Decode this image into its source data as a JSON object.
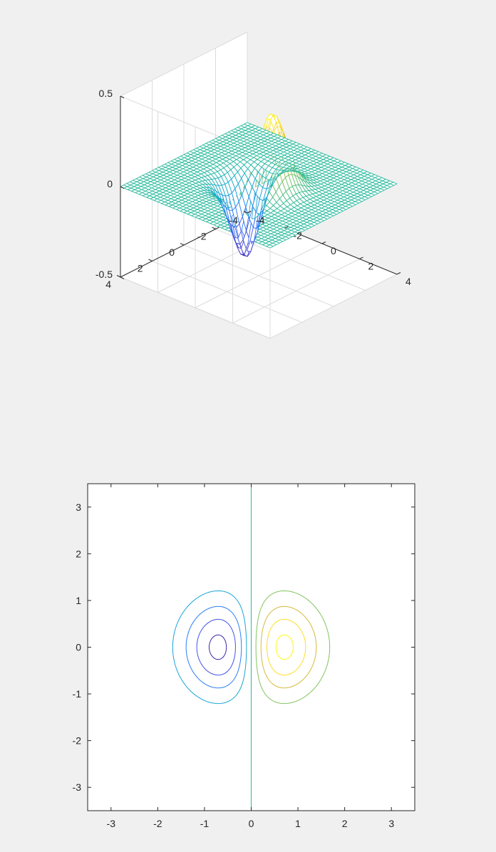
{
  "chart_data": [
    {
      "type": "surface",
      "function": "z = x * exp(-x^2 - y^2)",
      "x": [
        -4,
        -3.8,
        -3.6,
        -3.4,
        -3.2,
        -3,
        -2.8,
        -2.6,
        -2.4,
        -2.2,
        -2,
        -1.8,
        -1.6,
        -1.4,
        -1.2,
        -1,
        -0.8,
        -0.6,
        -0.4,
        -0.2,
        0,
        0.2,
        0.4,
        0.6,
        0.8,
        1,
        1.2,
        1.4,
        1.6,
        1.8,
        2,
        2.2,
        2.4,
        2.6,
        2.8,
        3,
        3.2,
        3.4,
        3.6,
        3.8,
        4
      ],
      "y": [
        -4,
        -3.8,
        -3.6,
        -3.4,
        -3.2,
        -3,
        -2.8,
        -2.6,
        -2.4,
        -2.2,
        -2,
        -1.8,
        -1.6,
        -1.4,
        -1.2,
        -1,
        -0.8,
        -0.6,
        -0.4,
        -0.2,
        0,
        0.2,
        0.4,
        0.6,
        0.8,
        1,
        1.2,
        1.4,
        1.6,
        1.8,
        2,
        2.2,
        2.4,
        2.6,
        2.8,
        3,
        3.2,
        3.4,
        3.6,
        3.8,
        4
      ],
      "xlim": [
        -4,
        4
      ],
      "ylim": [
        -4,
        4
      ],
      "zlim": [
        -0.5,
        0.5
      ],
      "x_ticks": [
        "-4",
        "-2",
        "0",
        "2",
        "4"
      ],
      "y_ticks": [
        "-4",
        "-2",
        "0",
        "2",
        "4"
      ],
      "z_ticks": [
        "-0.5",
        "0",
        "0.5"
      ],
      "grid": true,
      "colormap": [
        "#3e26a8",
        "#4353e6",
        "#2c7ef5",
        "#19a5d8",
        "#2dbb9f",
        "#82c45f",
        "#d6ba3b",
        "#fedd2a",
        "#f9fb15"
      ]
    },
    {
      "type": "contour",
      "function": "z = x * exp(-x^2 - y^2)",
      "x_range": [
        -3.5,
        3.5
      ],
      "y_range": [
        -3.5,
        3.5
      ],
      "levels": [
        -0.4,
        -0.3,
        -0.2,
        -0.1,
        0,
        0.1,
        0.2,
        0.3,
        0.4
      ],
      "x_ticks": [
        "-3",
        "-2",
        "-1",
        "0",
        "1",
        "2",
        "3"
      ],
      "y_ticks": [
        "-3",
        "-2",
        "-1",
        "0",
        "1",
        "2",
        "3"
      ],
      "grid": false
    }
  ]
}
